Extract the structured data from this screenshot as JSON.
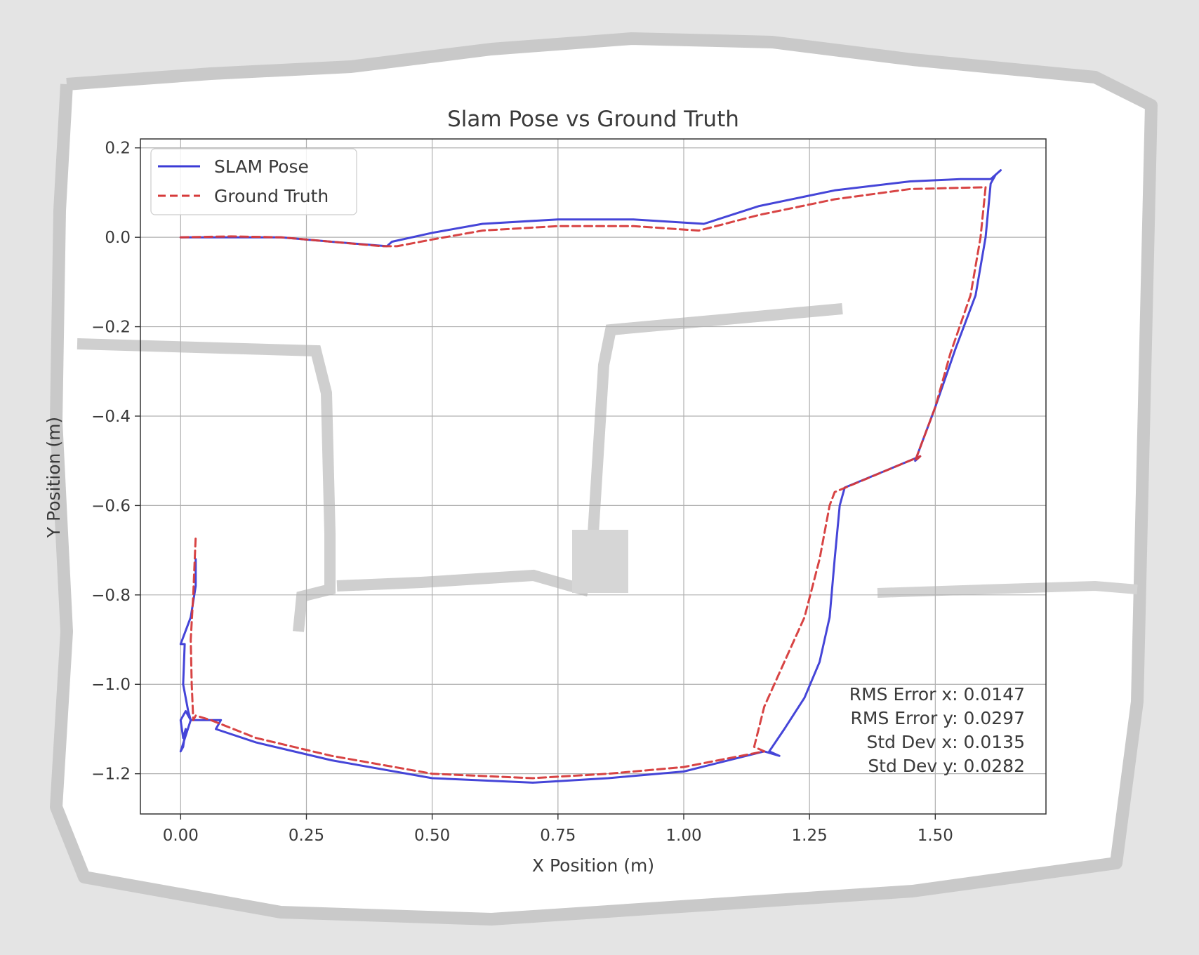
{
  "chart_data": {
    "type": "line",
    "title": "Slam Pose vs Ground Truth",
    "xlabel": "X Position (m)",
    "ylabel": "Y Position (m)",
    "xlim": [
      -0.08,
      1.72
    ],
    "ylim": [
      -1.29,
      0.22
    ],
    "grid": true,
    "legend_position": "top-left",
    "x_ticks": [
      0.0,
      0.25,
      0.5,
      0.75,
      1.0,
      1.25,
      1.5
    ],
    "x_tick_labels": [
      "0.00",
      "0.25",
      "0.50",
      "0.75",
      "1.00",
      "1.25",
      "1.50"
    ],
    "y_ticks": [
      0.2,
      0.0,
      -0.2,
      -0.4,
      -0.6,
      -0.8,
      -1.0,
      -1.2
    ],
    "y_tick_labels": [
      "0.2",
      "0.0",
      "−0.2",
      "−0.4",
      "−0.6",
      "−0.8",
      "−1.0",
      "−1.2"
    ],
    "series": [
      {
        "name": "SLAM Pose",
        "color": "#3b3bd6",
        "style": "solid",
        "x": [
          0.0,
          0.1,
          0.2,
          0.3,
          0.41,
          0.42,
          0.5,
          0.6,
          0.75,
          0.9,
          1.04,
          1.15,
          1.3,
          1.45,
          1.55,
          1.61,
          1.63,
          1.62,
          1.61,
          1.6,
          1.58,
          1.54,
          1.5,
          1.47,
          1.46,
          1.47,
          1.32,
          1.31,
          1.3,
          1.29,
          1.27,
          1.24,
          1.2,
          1.17,
          1.19,
          1.16,
          1.0,
          0.85,
          0.7,
          0.5,
          0.3,
          0.15,
          0.07,
          0.08,
          0.02,
          0.01,
          0.0,
          0.005,
          0.01,
          0.005,
          0.0,
          0.02,
          0.015,
          0.005,
          0.008,
          0.0,
          0.02,
          0.03,
          0.03
        ],
        "y": [
          0.0,
          0.0,
          -0.0,
          -0.01,
          -0.02,
          -0.01,
          0.01,
          0.03,
          0.04,
          0.04,
          0.03,
          0.07,
          0.105,
          0.125,
          0.13,
          0.13,
          0.15,
          0.14,
          0.12,
          0.0,
          -0.13,
          -0.25,
          -0.38,
          -0.47,
          -0.5,
          -0.49,
          -0.56,
          -0.6,
          -0.72,
          -0.85,
          -0.95,
          -1.03,
          -1.1,
          -1.15,
          -1.16,
          -1.15,
          -1.195,
          -1.21,
          -1.22,
          -1.21,
          -1.17,
          -1.13,
          -1.1,
          -1.08,
          -1.08,
          -1.06,
          -1.08,
          -1.12,
          -1.1,
          -1.14,
          -1.15,
          -1.08,
          -1.06,
          -1.0,
          -0.91,
          -0.91,
          -0.85,
          -0.78,
          -0.72
        ]
      },
      {
        "name": "Ground Truth",
        "color": "#d63a3a",
        "style": "dashed",
        "x": [
          0.0,
          0.1,
          0.2,
          0.3,
          0.4,
          0.43,
          0.5,
          0.6,
          0.75,
          0.9,
          1.03,
          1.15,
          1.3,
          1.45,
          1.6,
          1.59,
          1.57,
          1.53,
          1.5,
          1.47,
          1.46,
          1.47,
          1.3,
          1.29,
          1.27,
          1.24,
          1.2,
          1.16,
          1.14,
          1.16,
          1.0,
          0.85,
          0.7,
          0.5,
          0.3,
          0.15,
          0.06,
          0.03,
          0.025,
          0.022,
          0.02,
          0.025,
          0.028,
          0.03
        ],
        "y": [
          0.0,
          0.002,
          0.0,
          -0.01,
          -0.02,
          -0.02,
          -0.005,
          0.015,
          0.025,
          0.025,
          0.015,
          0.05,
          0.085,
          0.108,
          0.112,
          0.0,
          -0.13,
          -0.26,
          -0.38,
          -0.47,
          -0.5,
          -0.49,
          -0.57,
          -0.6,
          -0.72,
          -0.85,
          -0.95,
          -1.05,
          -1.14,
          -1.15,
          -1.185,
          -1.2,
          -1.21,
          -1.2,
          -1.16,
          -1.12,
          -1.08,
          -1.07,
          -1.08,
          -1.0,
          -0.9,
          -0.8,
          -0.72,
          -0.67
        ]
      }
    ],
    "annotations": [
      "RMS Error x: 0.0147",
      "RMS Error y: 0.0297",
      "Std Dev x: 0.0135",
      "Std Dev y: 0.0282"
    ]
  }
}
